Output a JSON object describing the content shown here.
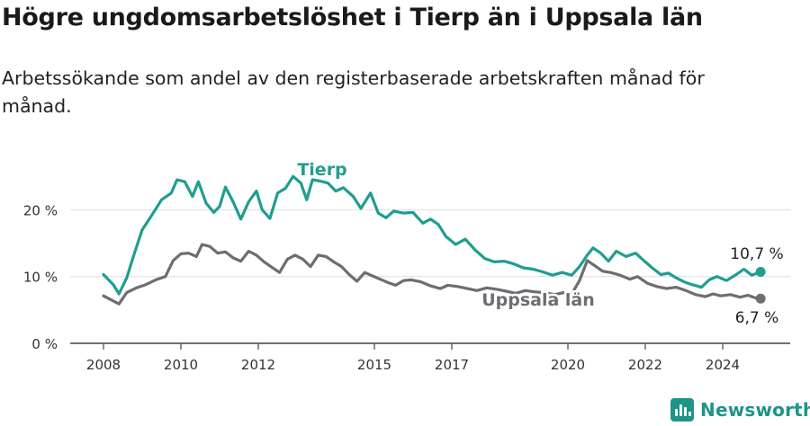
{
  "header": {
    "title": "Högre ungdomsarbetslöshet i Tierp än i Uppsala län",
    "subtitle": "Arbetssökande som andel av den registerbaserade arbetskraften månad för månad."
  },
  "branding": {
    "name": "Newsworthy",
    "icon": "newsworthy-logo-icon",
    "color": "#1f9488"
  },
  "chart_data": {
    "type": "line",
    "xlabel": "",
    "ylabel": "",
    "xlim": [
      2007.5,
      2025.3
    ],
    "ylim": [
      0,
      27
    ],
    "grid": true,
    "y_ticks": [
      {
        "value": 0,
        "label": "0 %"
      },
      {
        "value": 10,
        "label": "10 %"
      },
      {
        "value": 20,
        "label": "20 %"
      }
    ],
    "x_ticks": [
      {
        "value": 2008,
        "label": "2008"
      },
      {
        "value": 2010,
        "label": "2010"
      },
      {
        "value": 2012,
        "label": "2012"
      },
      {
        "value": 2015,
        "label": "2015"
      },
      {
        "value": 2017,
        "label": "2017"
      },
      {
        "value": 2020,
        "label": "2020"
      },
      {
        "value": 2022,
        "label": "2022"
      },
      {
        "value": 2024,
        "label": "2024"
      }
    ],
    "series": [
      {
        "name": "Tierp",
        "color": "#1f9e8f",
        "end_label": "10,7 %",
        "points": [
          [
            2008.0,
            10.3
          ],
          [
            2008.25,
            8.8
          ],
          [
            2008.4,
            7.4
          ],
          [
            2008.6,
            9.8
          ],
          [
            2008.8,
            13.5
          ],
          [
            2009.0,
            17.0
          ],
          [
            2009.25,
            19.2
          ],
          [
            2009.5,
            21.5
          ],
          [
            2009.75,
            22.5
          ],
          [
            2009.9,
            24.5
          ],
          [
            2010.1,
            24.2
          ],
          [
            2010.3,
            22.0
          ],
          [
            2010.45,
            24.2
          ],
          [
            2010.65,
            21.0
          ],
          [
            2010.85,
            19.6
          ],
          [
            2011.0,
            20.5
          ],
          [
            2011.15,
            23.4
          ],
          [
            2011.35,
            21.2
          ],
          [
            2011.55,
            18.6
          ],
          [
            2011.75,
            21.2
          ],
          [
            2011.95,
            22.8
          ],
          [
            2012.1,
            20.0
          ],
          [
            2012.3,
            18.7
          ],
          [
            2012.5,
            22.5
          ],
          [
            2012.7,
            23.2
          ],
          [
            2012.9,
            25.0
          ],
          [
            2013.1,
            24.0
          ],
          [
            2013.25,
            21.5
          ],
          [
            2013.4,
            24.5
          ],
          [
            2013.6,
            24.3
          ],
          [
            2013.8,
            24.0
          ],
          [
            2014.0,
            22.8
          ],
          [
            2014.2,
            23.3
          ],
          [
            2014.45,
            22.0
          ],
          [
            2014.65,
            20.2
          ],
          [
            2014.9,
            22.5
          ],
          [
            2015.1,
            19.5
          ],
          [
            2015.3,
            18.8
          ],
          [
            2015.5,
            19.8
          ],
          [
            2015.75,
            19.5
          ],
          [
            2016.0,
            19.6
          ],
          [
            2016.25,
            18.0
          ],
          [
            2016.45,
            18.6
          ],
          [
            2016.65,
            17.8
          ],
          [
            2016.85,
            16.0
          ],
          [
            2017.1,
            14.8
          ],
          [
            2017.35,
            15.6
          ],
          [
            2017.6,
            14.0
          ],
          [
            2017.85,
            12.7
          ],
          [
            2018.1,
            12.2
          ],
          [
            2018.35,
            12.3
          ],
          [
            2018.6,
            11.9
          ],
          [
            2018.85,
            11.3
          ],
          [
            2019.1,
            11.1
          ],
          [
            2019.35,
            10.7
          ],
          [
            2019.6,
            10.2
          ],
          [
            2019.85,
            10.6
          ],
          [
            2020.1,
            10.2
          ],
          [
            2020.3,
            11.5
          ],
          [
            2020.5,
            13.2
          ],
          [
            2020.65,
            14.3
          ],
          [
            2020.85,
            13.5
          ],
          [
            2021.05,
            12.3
          ],
          [
            2021.25,
            13.8
          ],
          [
            2021.5,
            13.0
          ],
          [
            2021.75,
            13.5
          ],
          [
            2022.0,
            12.2
          ],
          [
            2022.2,
            11.2
          ],
          [
            2022.4,
            10.3
          ],
          [
            2022.6,
            10.5
          ],
          [
            2022.8,
            9.8
          ],
          [
            2023.0,
            9.2
          ],
          [
            2023.2,
            8.8
          ],
          [
            2023.45,
            8.4
          ],
          [
            2023.65,
            9.5
          ],
          [
            2023.85,
            10.0
          ],
          [
            2024.1,
            9.4
          ],
          [
            2024.35,
            10.3
          ],
          [
            2024.55,
            11.1
          ],
          [
            2024.75,
            10.2
          ],
          [
            2024.98,
            10.7
          ]
        ]
      },
      {
        "name": "Uppsala län",
        "color": "#6d6d72",
        "end_label": "6,7 %",
        "points": [
          [
            2008.0,
            7.1
          ],
          [
            2008.2,
            6.5
          ],
          [
            2008.4,
            5.9
          ],
          [
            2008.6,
            7.6
          ],
          [
            2008.85,
            8.3
          ],
          [
            2009.1,
            8.8
          ],
          [
            2009.35,
            9.5
          ],
          [
            2009.6,
            10.0
          ],
          [
            2009.8,
            12.4
          ],
          [
            2010.0,
            13.4
          ],
          [
            2010.2,
            13.5
          ],
          [
            2010.4,
            13.0
          ],
          [
            2010.55,
            14.8
          ],
          [
            2010.75,
            14.5
          ],
          [
            2010.95,
            13.5
          ],
          [
            2011.15,
            13.7
          ],
          [
            2011.35,
            12.8
          ],
          [
            2011.55,
            12.3
          ],
          [
            2011.75,
            13.8
          ],
          [
            2011.95,
            13.2
          ],
          [
            2012.15,
            12.2
          ],
          [
            2012.35,
            11.4
          ],
          [
            2012.55,
            10.6
          ],
          [
            2012.75,
            12.6
          ],
          [
            2012.95,
            13.2
          ],
          [
            2013.15,
            12.6
          ],
          [
            2013.35,
            11.5
          ],
          [
            2013.55,
            13.2
          ],
          [
            2013.75,
            13.0
          ],
          [
            2013.95,
            12.2
          ],
          [
            2014.15,
            11.5
          ],
          [
            2014.35,
            10.3
          ],
          [
            2014.55,
            9.3
          ],
          [
            2014.75,
            10.6
          ],
          [
            2014.95,
            10.1
          ],
          [
            2015.15,
            9.6
          ],
          [
            2015.35,
            9.1
          ],
          [
            2015.55,
            8.7
          ],
          [
            2015.75,
            9.4
          ],
          [
            2015.95,
            9.5
          ],
          [
            2016.2,
            9.2
          ],
          [
            2016.45,
            8.6
          ],
          [
            2016.7,
            8.2
          ],
          [
            2016.9,
            8.7
          ],
          [
            2017.15,
            8.5
          ],
          [
            2017.4,
            8.2
          ],
          [
            2017.65,
            7.9
          ],
          [
            2017.9,
            8.3
          ],
          [
            2018.15,
            8.1
          ],
          [
            2018.4,
            7.8
          ],
          [
            2018.65,
            7.5
          ],
          [
            2018.9,
            7.9
          ],
          [
            2019.15,
            7.7
          ],
          [
            2019.4,
            7.6
          ],
          [
            2019.65,
            7.3
          ],
          [
            2019.9,
            7.6
          ],
          [
            2020.1,
            7.4
          ],
          [
            2020.3,
            9.4
          ],
          [
            2020.5,
            12.4
          ],
          [
            2020.7,
            11.6
          ],
          [
            2020.9,
            10.8
          ],
          [
            2021.1,
            10.6
          ],
          [
            2021.35,
            10.2
          ],
          [
            2021.6,
            9.6
          ],
          [
            2021.8,
            10.0
          ],
          [
            2022.05,
            9.0
          ],
          [
            2022.3,
            8.5
          ],
          [
            2022.55,
            8.2
          ],
          [
            2022.8,
            8.4
          ],
          [
            2023.05,
            7.9
          ],
          [
            2023.3,
            7.3
          ],
          [
            2023.55,
            7.0
          ],
          [
            2023.75,
            7.4
          ],
          [
            2023.95,
            7.1
          ],
          [
            2024.2,
            7.3
          ],
          [
            2024.45,
            6.9
          ],
          [
            2024.65,
            7.2
          ],
          [
            2024.85,
            6.8
          ],
          [
            2024.98,
            6.7
          ]
        ]
      }
    ]
  }
}
